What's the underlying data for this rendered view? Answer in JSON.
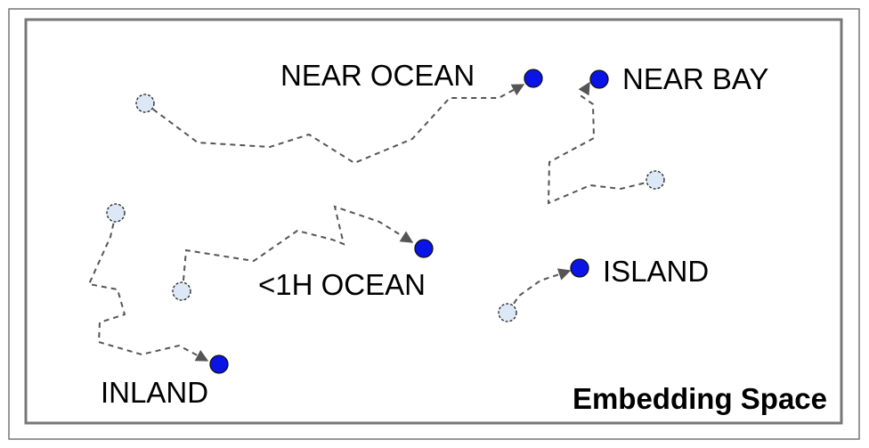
{
  "title": "Embedding Space",
  "colors": {
    "end_point": "#0a14e6",
    "start_point": "#dce8f5",
    "path": "#555555",
    "frame": "#777777"
  },
  "categories": [
    {
      "key": "near-ocean",
      "label": "NEAR OCEAN"
    },
    {
      "key": "near-bay",
      "label": "NEAR BAY"
    },
    {
      "key": "1h-ocean",
      "label": "<1H OCEAN"
    },
    {
      "key": "island",
      "label": "ISLAND"
    },
    {
      "key": "inland",
      "label": "INLAND"
    }
  ]
}
